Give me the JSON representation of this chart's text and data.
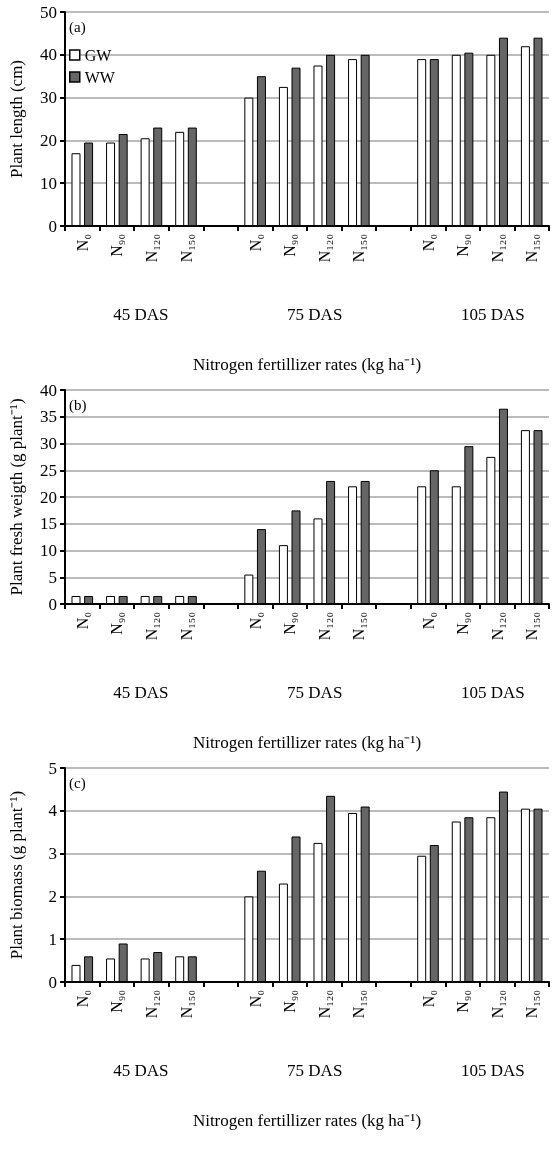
{
  "chart_data": [
    {
      "type": "bar",
      "title": "(a)",
      "ylabel": "Plant length (cm)",
      "xlabel": "Nitrogen fertillizer rates (kg ha⁻¹)",
      "annotations": [
        "45 DAS",
        "75 DAS",
        "105 DAS"
      ],
      "categories": [
        "N₀",
        "N₉₀",
        "N₁₂₀",
        "N₁₅₀",
        null,
        "N₀",
        "N₉₀",
        "N₁₂₀",
        "N₁₅₀",
        null,
        "N₀",
        "N₉₀",
        "N₁₂₀",
        "N₁₅₀"
      ],
      "ylim": [
        0,
        50
      ],
      "yticks": [
        0,
        10,
        20,
        30,
        40,
        50
      ],
      "grid": "y",
      "legend": "top left",
      "series": [
        {
          "name": "GW",
          "color": "#ffffff",
          "values": [
            17,
            19.5,
            20.5,
            22,
            null,
            30,
            32.5,
            37.5,
            39,
            null,
            39,
            40,
            40,
            42
          ]
        },
        {
          "name": "WW",
          "color": "#666666",
          "values": [
            19.5,
            21.5,
            23,
            23,
            null,
            35,
            37,
            40,
            40,
            null,
            39,
            40.5,
            44,
            44
          ]
        }
      ]
    },
    {
      "type": "bar",
      "title": "(b)",
      "ylabel": "Plant fresh weigth (g plant⁻¹)",
      "xlabel": "Nitrogen fertillizer rates (kg ha⁻¹)",
      "annotations": [
        "45 DAS",
        "75 DAS",
        "105 DAS"
      ],
      "categories": [
        "N₀",
        "N₉₀",
        "N₁₂₀",
        "N₁₅₀",
        null,
        "N₀",
        "N₉₀",
        "N₁₂₀",
        "N₁₅₀",
        null,
        "N₀",
        "N₉₀",
        "N₁₂₀",
        "N₁₅₀"
      ],
      "ylim": [
        0,
        40
      ],
      "yticks": [
        0,
        5,
        10,
        15,
        20,
        25,
        30,
        35,
        40
      ],
      "grid": "y",
      "series": [
        {
          "color": "#ffffff",
          "values": [
            1.5,
            1.5,
            1.5,
            1.5,
            null,
            5.5,
            11,
            16,
            22,
            null,
            22,
            22,
            27.5,
            32.5
          ]
        },
        {
          "color": "#666666",
          "values": [
            1.5,
            1.5,
            1.5,
            1.5,
            null,
            14,
            17.5,
            23,
            23,
            null,
            25,
            29.5,
            36.5,
            32.5
          ]
        }
      ]
    },
    {
      "type": "bar",
      "title": "(c)",
      "ylabel": "Plant biomass (g plant⁻¹)",
      "xlabel": "Nitrogen fertillizer rates (kg ha⁻¹)",
      "annotations": [
        "45 DAS",
        "75 DAS",
        "105 DAS"
      ],
      "categories": [
        "N₀",
        "N₉₀",
        "N₁₂₀",
        "N₁₅₀",
        null,
        "N₀",
        "N₉₀",
        "N₁₂₀",
        "N₁₅₀",
        null,
        "N₀",
        "N₉₀",
        "N₁₂₀",
        "N₁₅₀"
      ],
      "ylim": [
        0,
        5
      ],
      "yticks": [
        0,
        1,
        2,
        3,
        4,
        5
      ],
      "grid": "y",
      "series": [
        {
          "color": "#ffffff",
          "values": [
            0.4,
            0.55,
            0.55,
            0.6,
            null,
            2,
            2.3,
            3.25,
            3.95,
            null,
            2.95,
            3.75,
            3.85,
            4.05
          ]
        },
        {
          "color": "#666666",
          "values": [
            0.6,
            0.9,
            0.7,
            0.6,
            null,
            2.6,
            3.4,
            4.35,
            4.1,
            null,
            3.2,
            3.85,
            4.45,
            4.05
          ]
        }
      ]
    }
  ]
}
